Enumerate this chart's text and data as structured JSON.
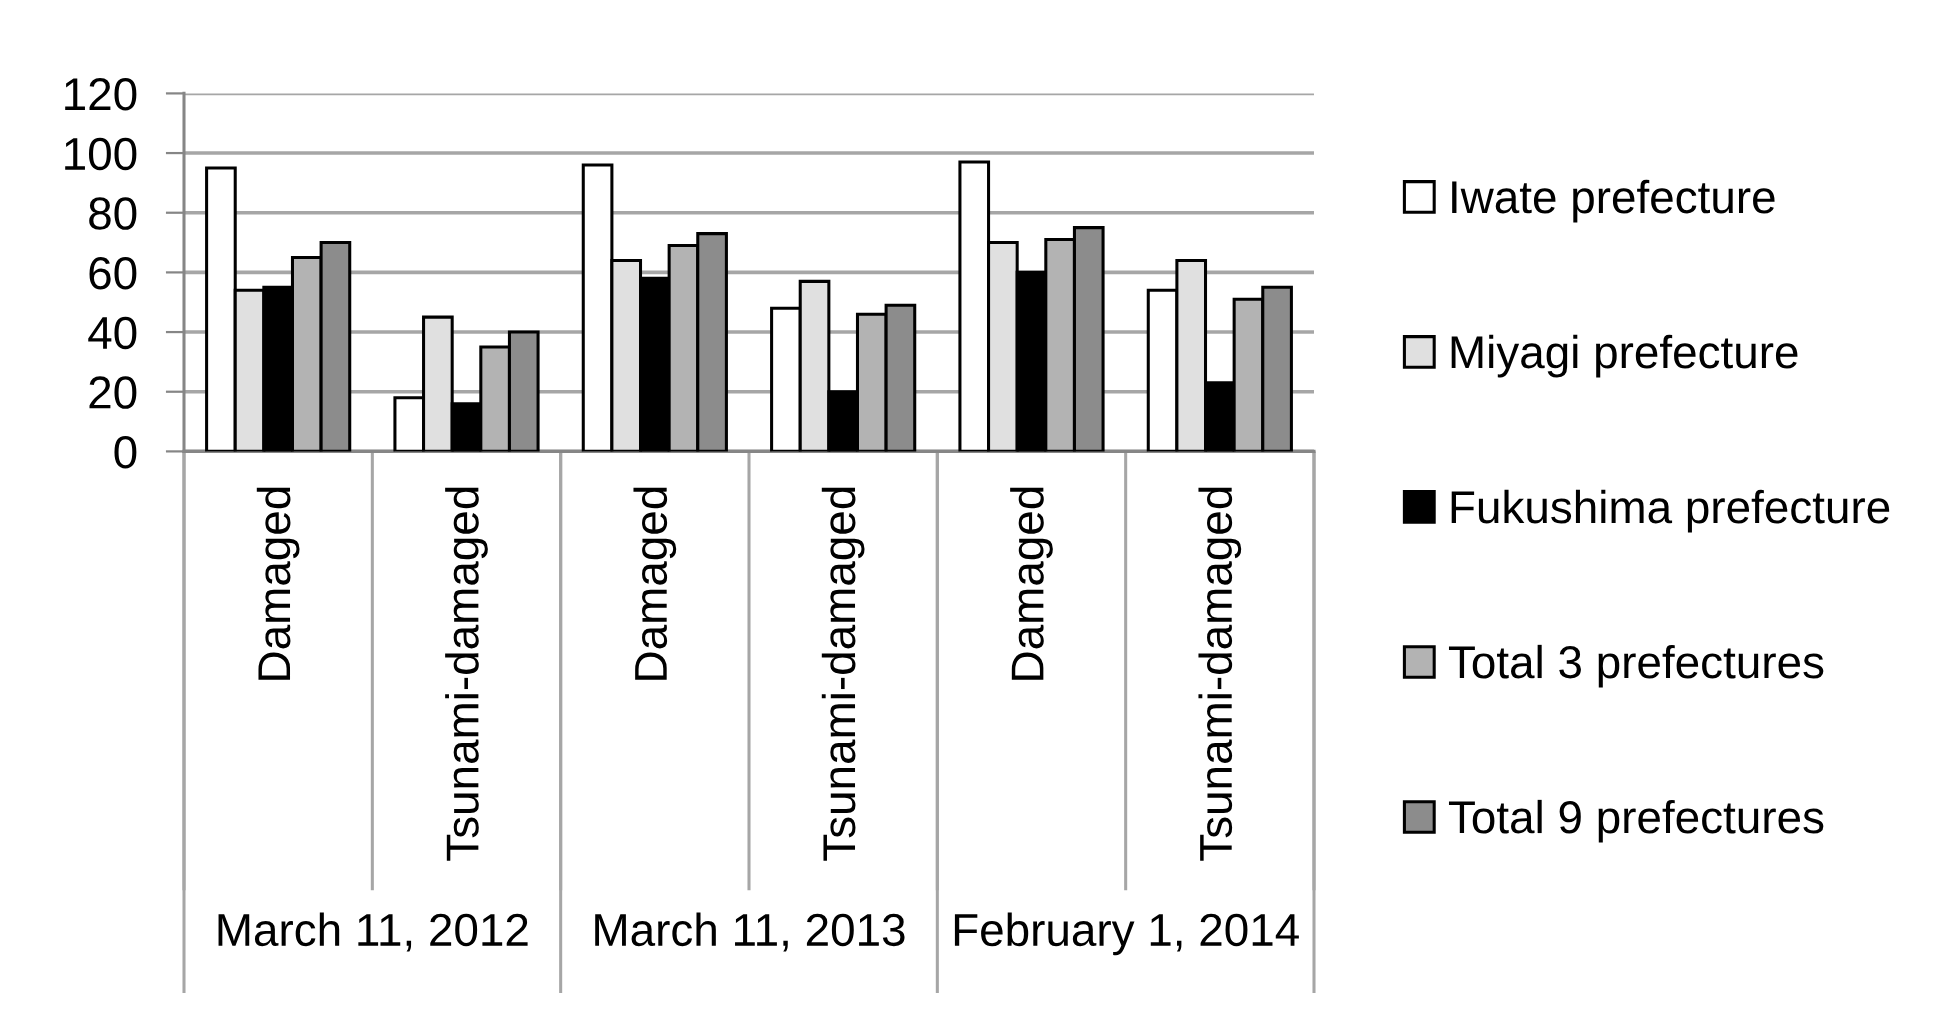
{
  "chart_data": {
    "type": "bar",
    "categories": [
      "Damaged",
      "Tsunami-damaged",
      "Damaged",
      "Tsunami-damaged",
      "Damaged",
      "Tsunami-damaged"
    ],
    "series": [
      {
        "name": "Iwate prefecture",
        "color": "#ffffff",
        "values": [
          95,
          18,
          96,
          48,
          97,
          54
        ]
      },
      {
        "name": "Miyagi prefecture",
        "color": "#e0e0e0",
        "values": [
          54,
          45,
          64,
          57,
          70,
          64
        ]
      },
      {
        "name": "Fukushima prefecture",
        "color": "#000000",
        "values": [
          55,
          16,
          58,
          20,
          60,
          23
        ]
      },
      {
        "name": "Total 3 prefectures",
        "color": "#b3b3b3",
        "values": [
          65,
          35,
          69,
          46,
          71,
          51
        ]
      },
      {
        "name": "Total 9 prefectures",
        "color": "#8c8c8c",
        "values": [
          70,
          40,
          73,
          49,
          75,
          55
        ]
      }
    ],
    "ylim": [
      0,
      120
    ],
    "yticks": [
      0,
      20,
      40,
      60,
      80,
      100,
      120
    ],
    "grid": "y",
    "legend": "right",
    "annotations": [
      "March 11, 2012",
      "March 11, 2013",
      "February 1, 2014"
    ]
  }
}
